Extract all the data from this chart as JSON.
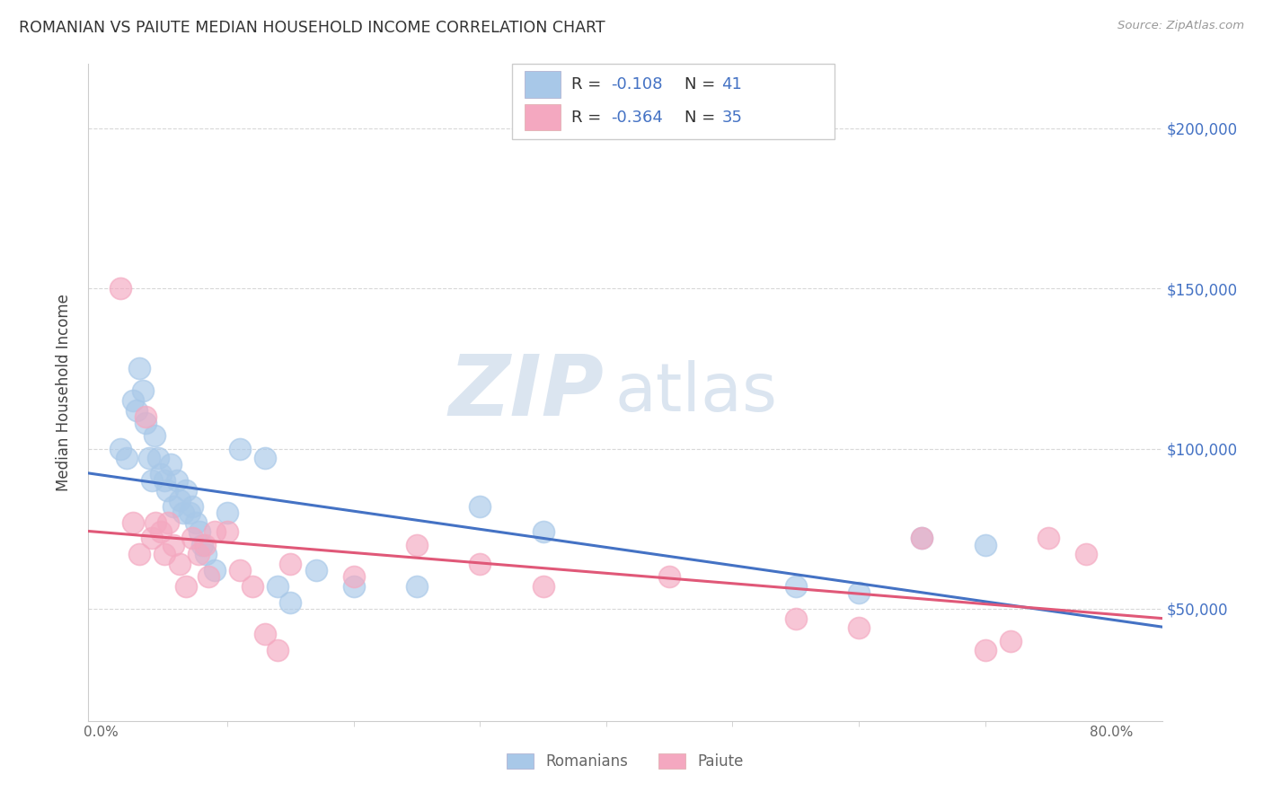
{
  "title": "ROMANIAN VS PAIUTE MEDIAN HOUSEHOLD INCOME CORRELATION CHART",
  "source": "Source: ZipAtlas.com",
  "ylabel": "Median Household Income",
  "yticks": [
    50000,
    100000,
    150000,
    200000
  ],
  "ytick_labels": [
    "$50,000",
    "$100,000",
    "$150,000",
    "$200,000"
  ],
  "ylim": [
    15000,
    220000
  ],
  "xlim": [
    -0.01,
    0.84
  ],
  "legend_label1": "Romanians",
  "legend_label2": "Paiute",
  "blue_color": "#a8c8e8",
  "pink_color": "#f4a8c0",
  "blue_line_color": "#4472c4",
  "pink_line_color": "#e05878",
  "legend_text_color": "#4472c4",
  "legend_r1_val": "-0.108",
  "legend_n1_val": "41",
  "legend_r2_val": "-0.364",
  "legend_n2_val": "35",
  "blue_scatter_x": [
    0.015,
    0.02,
    0.025,
    0.028,
    0.03,
    0.033,
    0.035,
    0.038,
    0.04,
    0.042,
    0.045,
    0.047,
    0.05,
    0.052,
    0.055,
    0.057,
    0.06,
    0.062,
    0.065,
    0.067,
    0.07,
    0.072,
    0.075,
    0.078,
    0.08,
    0.083,
    0.09,
    0.1,
    0.11,
    0.13,
    0.14,
    0.15,
    0.17,
    0.2,
    0.25,
    0.3,
    0.35,
    0.55,
    0.6,
    0.65,
    0.7
  ],
  "blue_scatter_y": [
    100000,
    97000,
    115000,
    112000,
    125000,
    118000,
    108000,
    97000,
    90000,
    104000,
    97000,
    92000,
    90000,
    87000,
    95000,
    82000,
    90000,
    84000,
    80000,
    87000,
    80000,
    82000,
    77000,
    74000,
    70000,
    67000,
    62000,
    80000,
    100000,
    97000,
    57000,
    52000,
    62000,
    57000,
    57000,
    82000,
    74000,
    57000,
    55000,
    72000,
    70000
  ],
  "pink_scatter_x": [
    0.015,
    0.025,
    0.03,
    0.035,
    0.04,
    0.043,
    0.047,
    0.05,
    0.053,
    0.057,
    0.062,
    0.067,
    0.072,
    0.077,
    0.082,
    0.085,
    0.09,
    0.1,
    0.11,
    0.12,
    0.13,
    0.14,
    0.15,
    0.2,
    0.25,
    0.3,
    0.35,
    0.45,
    0.55,
    0.6,
    0.65,
    0.7,
    0.72,
    0.75,
    0.78
  ],
  "pink_scatter_y": [
    150000,
    77000,
    67000,
    110000,
    72000,
    77000,
    74000,
    67000,
    77000,
    70000,
    64000,
    57000,
    72000,
    67000,
    70000,
    60000,
    74000,
    74000,
    62000,
    57000,
    42000,
    37000,
    64000,
    60000,
    70000,
    64000,
    57000,
    60000,
    47000,
    44000,
    72000,
    37000,
    40000,
    72000,
    67000
  ],
  "watermark_zip": "ZIP",
  "watermark_atlas": "atlas",
  "background_color": "#ffffff",
  "grid_color": "#d8d8d8"
}
